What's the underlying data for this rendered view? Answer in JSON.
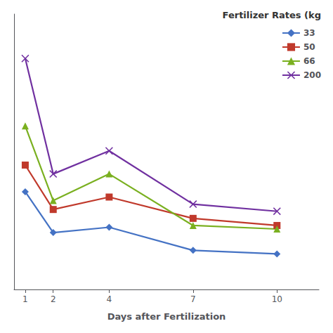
{
  "chart_data": {
    "type": "line",
    "x": [
      1,
      2,
      4,
      7,
      10
    ],
    "xlabel": "Days after Fertilization",
    "legend_title": "Fertilizer Rates (kg",
    "series": [
      {
        "name": "33",
        "color": "#4472c4",
        "marker": "diamond",
        "values": [
          5.5,
          3.2,
          3.5,
          2.2,
          2.0
        ]
      },
      {
        "name": "50",
        "color": "#c0392b",
        "marker": "square",
        "values": [
          7.0,
          4.5,
          5.2,
          4.0,
          3.6
        ]
      },
      {
        "name": "66",
        "color": "#7ab020",
        "marker": "triangle",
        "values": [
          9.2,
          5.0,
          6.5,
          3.6,
          3.4
        ]
      },
      {
        "name": "200",
        "color": "#7030a0",
        "marker": "x",
        "values": [
          13.0,
          6.5,
          7.8,
          4.8,
          4.4
        ]
      }
    ],
    "xlim": [
      0.6,
      11.5
    ],
    "xticks": [
      1,
      2,
      4,
      7,
      10
    ],
    "ylim": [
      0,
      15.5
    ],
    "tick_labels": "x",
    "grid": false,
    "legend": "upper right"
  }
}
